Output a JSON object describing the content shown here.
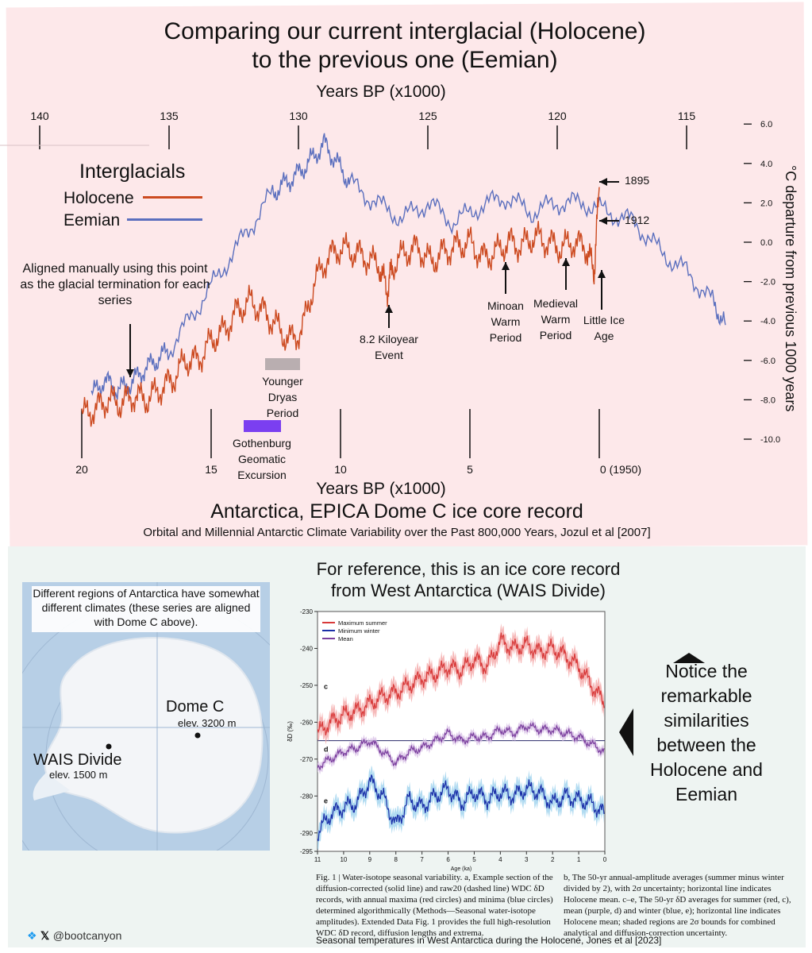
{
  "title": {
    "line1": "Comparing our current interglacial (Holocene)",
    "line2": "to the previous one (Eemian)"
  },
  "top_axis_title": "Years BP (x1000)",
  "bottom_axis_title": "Years BP (x1000)",
  "y_axis_title": "°C departure from previous 1000 years",
  "legend": {
    "title": "Interglacials",
    "items": [
      {
        "label": "Holocene",
        "color": "#cc4a20"
      },
      {
        "label": "Eemian",
        "color": "#5b6fbe"
      }
    ]
  },
  "annotations": {
    "aligned": "Aligned manually using this point as the glacial termination for each series",
    "younger_dryas": "Younger Dryas Period",
    "gothenburg": "Gothenburg Geomatic Excursion",
    "kiloyear": "8.2 Kiloyear Event",
    "minoan": "Minoan Warm Period",
    "medieval": "Medieval Warm Period",
    "little_ice": "Little Ice Age",
    "y1895": "1895",
    "y1912": "1912"
  },
  "source": {
    "title": "Antarctica, EPICA Dome C ice core record",
    "subtitle": "Orbital and Millennial Antarctic Climate Variability over the Past 800,000 Years, Jozul et al [2007]"
  },
  "reference_title": {
    "line1": "For reference, this is an ice core record",
    "line2": "from West Antarctica (WAIS Divide)"
  },
  "map": {
    "note": "Different regions of Antarctica have somewhat different climates (these series are aligned with Dome C above).",
    "dome_c": "Dome C",
    "dome_c_elev": "elev. 3200 m",
    "wais": "WAIS Divide",
    "wais_elev": "elev. 1500 m"
  },
  "notice": {
    "lines": [
      "Notice the",
      "remarkable",
      "similarities",
      "between the",
      "Holocene and",
      "Eemian"
    ]
  },
  "caption": {
    "left": "Fig. 1 | Water-isotope seasonal variability. a, Example section of the diffusion-corrected (solid line) and raw20 (dashed line) WDC δD records, with annual maxima (red circles) and minima (blue circles) determined algorithmically (Methods—Seasonal water-isotope amplitudes). Extended Data Fig. 1 provides the full high-resolution WDC δD record, diffusion lengths and extrema.",
    "right": "b, The 50-yr annual-amplitude averages (summer minus winter divided by 2), with 2σ uncertainty; horizontal line indicates Holocene mean. c–e, The 50-yr δD averages for summer (red, c), mean (purple, d) and winter (blue, e); horizontal line indicates Holocene mean; shaded regions are 2σ bounds for combined analytical and diffusion-correction uncertainty."
  },
  "footer": {
    "handle": "@bootcanyon",
    "source": "Seasonal temperatures in West Antarctica during the Holocene, Jones et al [2023]"
  },
  "chart_data": [
    {
      "type": "line",
      "title": "Comparing our current interglacial (Holocene) to the previous one (Eemian)",
      "ylabel": "°C departure from previous 1000 years",
      "ylim": [
        -10,
        6
      ],
      "yticks": [
        "6.0",
        "4.0",
        "2.0",
        "0.0",
        "-2.0",
        "-4.0",
        "-6.0",
        "-8.0",
        "-10.0"
      ],
      "top_x": {
        "label": "Years BP (x1000)",
        "ticks": [
          "140",
          "135",
          "130",
          "125",
          "120",
          "115"
        ],
        "range": [
          140,
          113
        ]
      },
      "bottom_x": {
        "label": "Years BP (x1000)",
        "ticks": [
          "20",
          "15",
          "10",
          "5",
          "0 (1950)"
        ],
        "range": [
          20,
          -5.5
        ]
      },
      "series": [
        {
          "name": "Holocene",
          "axis": "bottom",
          "color": "#cc4a20",
          "x": [
            20,
            19.5,
            19,
            18.5,
            18,
            17.5,
            17,
            16.5,
            16,
            15.5,
            15,
            14.5,
            14,
            13.5,
            13,
            12.5,
            12,
            11.5,
            11,
            10.5,
            10,
            9.5,
            9,
            8.5,
            8.2,
            8,
            7.5,
            7,
            6.5,
            6,
            5.5,
            5,
            4.5,
            4,
            3.5,
            3,
            2.5,
            2,
            1.5,
            1,
            0.5,
            0.2,
            0
          ],
          "y": [
            -8.8,
            -8.5,
            -8,
            -8.2,
            -7.8,
            -8,
            -7.5,
            -7,
            -6,
            -6,
            -5,
            -4.5,
            -3.5,
            -3,
            -3.5,
            -4.2,
            -5,
            -4.5,
            -2,
            -0.8,
            -0.3,
            -0.5,
            -0.8,
            -1.2,
            -2.5,
            -1.2,
            -0.5,
            -0.3,
            -1,
            -0.5,
            -0.2,
            0,
            -0.8,
            -0.5,
            0,
            -0.2,
            0.3,
            0,
            -0.3,
            0,
            -0.3,
            -1.5,
            2.8
          ]
        },
        {
          "name": "Eemian",
          "axis": "top",
          "color": "#5b6fbe",
          "x": [
            138,
            137.5,
            137,
            136.5,
            136,
            135.5,
            135,
            134,
            133,
            132,
            131,
            130.5,
            130,
            129.5,
            129,
            128.5,
            128,
            127,
            126,
            125,
            124,
            123,
            122,
            121,
            120,
            119,
            118,
            117,
            116,
            115,
            114,
            113.5
          ],
          "y": [
            -7.8,
            -7,
            -7.5,
            -7.2,
            -6.5,
            -6,
            -5.5,
            -3.5,
            -1.5,
            0.5,
            2.5,
            3,
            3.5,
            4.2,
            5,
            4,
            3,
            2,
            1.2,
            2,
            1,
            1.8,
            2.3,
            1.5,
            2,
            2,
            1.5,
            1,
            -0.5,
            -1.5,
            -3,
            -4.2
          ]
        }
      ],
      "annotations": [
        "1895",
        "1912",
        "8.2 Kiloyear Event",
        "Minoan Warm Period",
        "Medieval Warm Period",
        "Little Ice Age",
        "Younger Dryas Period",
        "Gothenburg Geomatic Excursion"
      ]
    },
    {
      "type": "line",
      "title": "Seasonal temperatures in West Antarctica during the Holocene",
      "xlabel": "Age (ka)",
      "ylabel": "δD (‰)",
      "xlim": [
        11,
        0
      ],
      "ylim": [
        -295,
        -230
      ],
      "xticks": [
        "11",
        "10",
        "9",
        "8",
        "7",
        "6",
        "5",
        "4",
        "3",
        "2",
        "1",
        "0"
      ],
      "yticks": [
        "-230",
        "-240",
        "-250",
        "-260",
        "-270",
        "-280",
        "-290",
        "-295"
      ],
      "panel_labels": [
        "c",
        "d",
        "e"
      ],
      "holocene_mean_line": -265,
      "series": [
        {
          "name": "Maximum summer",
          "color": "#d83a3a",
          "x": [
            11,
            10.5,
            10,
            9.5,
            9,
            8.5,
            8,
            7.5,
            7,
            6.5,
            6,
            5.5,
            5,
            4.5,
            4,
            3.5,
            3,
            2.5,
            2,
            1.5,
            1,
            0.5,
            0
          ],
          "y": [
            -263,
            -260,
            -258,
            -257,
            -255,
            -253,
            -252,
            -250,
            -248,
            -247,
            -245,
            -246,
            -243,
            -245,
            -238,
            -240,
            -239,
            -241,
            -240,
            -242,
            -245,
            -250,
            -255
          ]
        },
        {
          "name": "Minimum winter",
          "color": "#1a2fa8",
          "x": [
            11,
            10.5,
            10,
            9.5,
            9,
            8.5,
            8,
            7.5,
            7,
            6.5,
            6,
            5.5,
            5,
            4.5,
            4,
            3.5,
            3,
            2.5,
            2,
            1.5,
            1,
            0.5,
            0
          ],
          "y": [
            -290,
            -285,
            -283,
            -282,
            -276,
            -280,
            -288,
            -281,
            -283,
            -280,
            -278,
            -282,
            -279,
            -281,
            -279,
            -280,
            -278,
            -279,
            -282,
            -280,
            -281,
            -282,
            -285
          ]
        },
        {
          "name": "Mean",
          "color": "#7b3f9e",
          "x": [
            11,
            10.5,
            10,
            9.5,
            9,
            8.5,
            8,
            7.5,
            7,
            6.5,
            6,
            5.5,
            5,
            4.5,
            4,
            3.5,
            3,
            2.5,
            2,
            1.5,
            1,
            0.5,
            0
          ],
          "y": [
            -272,
            -270,
            -268,
            -267,
            -265,
            -268,
            -271,
            -268,
            -267,
            -265,
            -263,
            -265,
            -264,
            -264,
            -262,
            -263,
            -261,
            -262,
            -262,
            -263,
            -264,
            -266,
            -268
          ]
        }
      ]
    }
  ]
}
